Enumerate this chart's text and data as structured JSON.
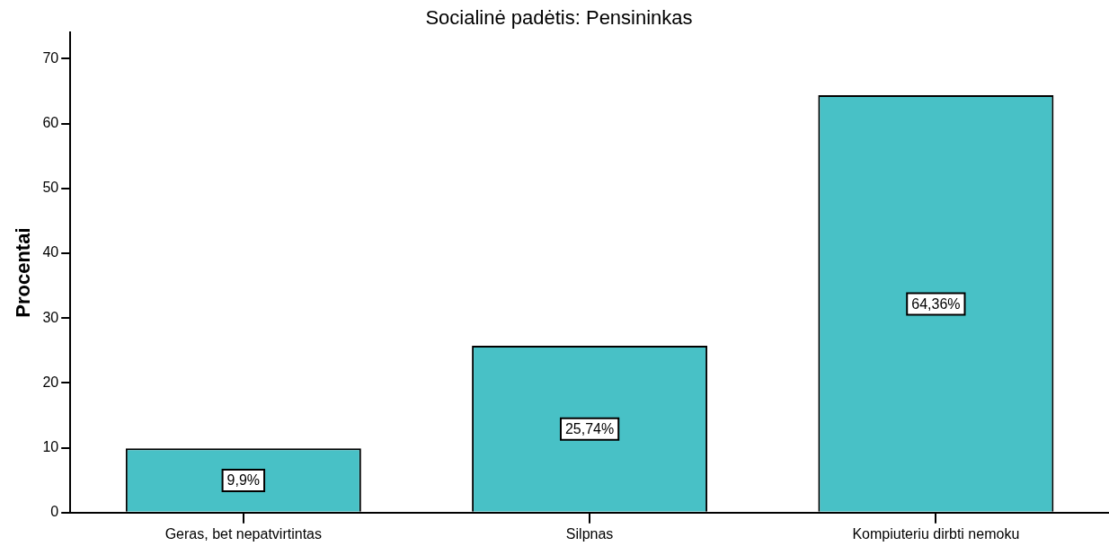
{
  "chart_data": {
    "type": "bar",
    "title": "Socialinė padėtis: Pensininkas",
    "ylabel": "Procentai",
    "categories": [
      "Geras, bet nepatvirtintas",
      "Silpnas",
      "Kompiuteriu dirbti nemoku"
    ],
    "values": [
      9.9,
      25.74,
      64.36
    ],
    "value_labels": [
      "9,9%",
      "25,74%",
      "64,36%"
    ],
    "color": "#48c1c6",
    "ylim": [
      0,
      74
    ],
    "yticks": [
      0,
      10,
      20,
      30,
      40,
      50,
      60,
      70
    ],
    "grid": false,
    "legend": false
  }
}
